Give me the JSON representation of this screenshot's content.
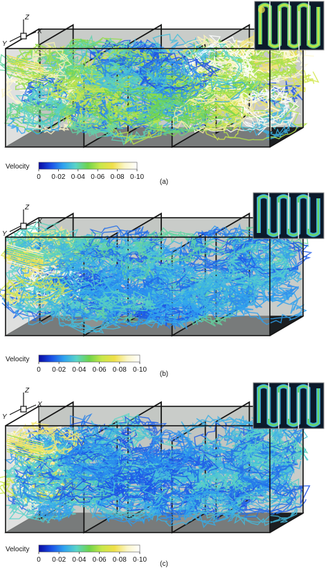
{
  "legend": {
    "title": "Velocity",
    "ticks": [
      "0",
      "0·02",
      "0·04",
      "0·06",
      "0·08",
      "0·10"
    ],
    "colormap": [
      "#0a0aa0",
      "#1a4fe6",
      "#2fa3ef",
      "#5ad4c8",
      "#6fd44a",
      "#c8e84a",
      "#f0e04a",
      "#fbf6c8",
      "#ffffff"
    ]
  },
  "axes": {
    "x": "X",
    "y": "Y",
    "z": "Z"
  },
  "panels": [
    {
      "label": "(a)"
    },
    {
      "label": "(b)"
    },
    {
      "label": "(c)"
    }
  ]
}
